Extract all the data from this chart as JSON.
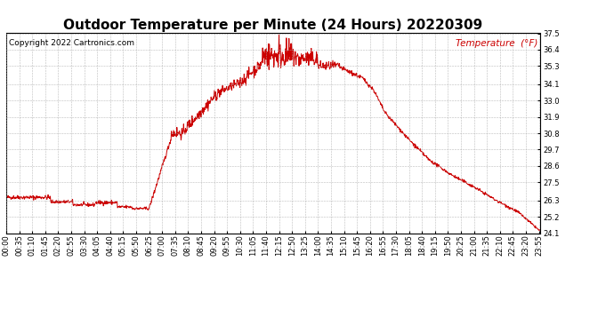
{
  "title": "Outdoor Temperature per Minute (24 Hours) 20220309",
  "copyright_text": "Copyright 2022 Cartronics.com",
  "legend_text": "Temperature  (°F)",
  "line_color": "#cc0000",
  "background_color": "#ffffff",
  "grid_color": "#aaaaaa",
  "ylim": [
    24.1,
    37.5
  ],
  "yticks": [
    24.1,
    25.2,
    26.3,
    27.5,
    28.6,
    29.7,
    30.8,
    31.9,
    33.0,
    34.1,
    35.3,
    36.4,
    37.5
  ],
  "xtick_step_minutes": 35,
  "title_fontsize": 11,
  "copyright_fontsize": 6.5,
  "legend_fontsize": 7.5,
  "tick_fontsize": 6.0
}
